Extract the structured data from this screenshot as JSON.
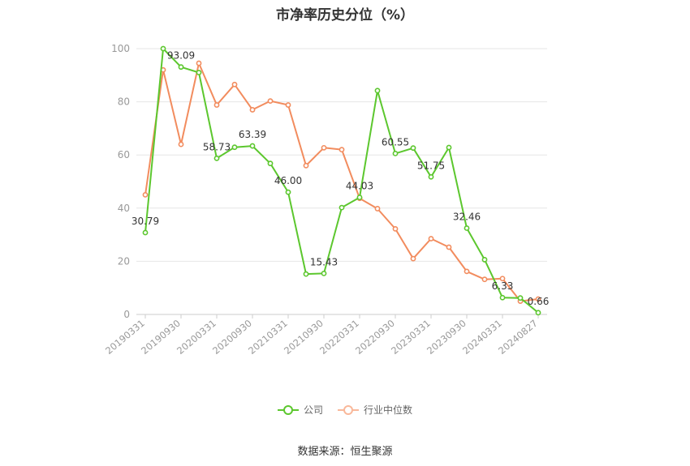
{
  "chart_data": {
    "type": "line",
    "title": "市净率历史分位（%）",
    "ylim": [
      0,
      100
    ],
    "yticks": [
      0,
      20,
      40,
      60,
      80,
      100
    ],
    "xtick_labels": [
      "20190331",
      "20190930",
      "20200331",
      "20200930",
      "20210331",
      "20210930",
      "20220331",
      "20220930",
      "20230331",
      "20230930",
      "20240331",
      "20240827"
    ],
    "grid": true,
    "legend_position": "bottom",
    "series": [
      {
        "name": "公司",
        "color": "#5cc72e",
        "values": [
          30.79,
          100,
          93.09,
          91,
          58.73,
          62.9,
          63.39,
          56.8,
          46.0,
          15.2,
          15.43,
          40.2,
          44.03,
          84.2,
          60.55,
          62.6,
          51.75,
          62.8,
          32.46,
          20.6,
          6.33,
          6.2,
          0.66
        ],
        "labels": {
          "0": "30.79",
          "2": "93.09",
          "4": "58.73",
          "6": "63.39",
          "8": "46.00",
          "10": "15.43",
          "12": "44.03",
          "14": "60.55",
          "16": "51.75",
          "18": "32.46",
          "20": "6.33",
          "22": "0.66"
        }
      },
      {
        "name": "行业中位数",
        "color": "#f28c5e",
        "values": [
          45.0,
          92.0,
          64.0,
          94.5,
          78.8,
          86.5,
          77.0,
          80.3,
          78.8,
          56.0,
          62.7,
          62.0,
          43.7,
          39.8,
          32.2,
          21.0,
          28.5,
          25.3,
          16.2,
          13.2,
          13.5,
          5.0,
          5.8
        ]
      }
    ]
  },
  "source_text": "数据来源：恒生聚源"
}
